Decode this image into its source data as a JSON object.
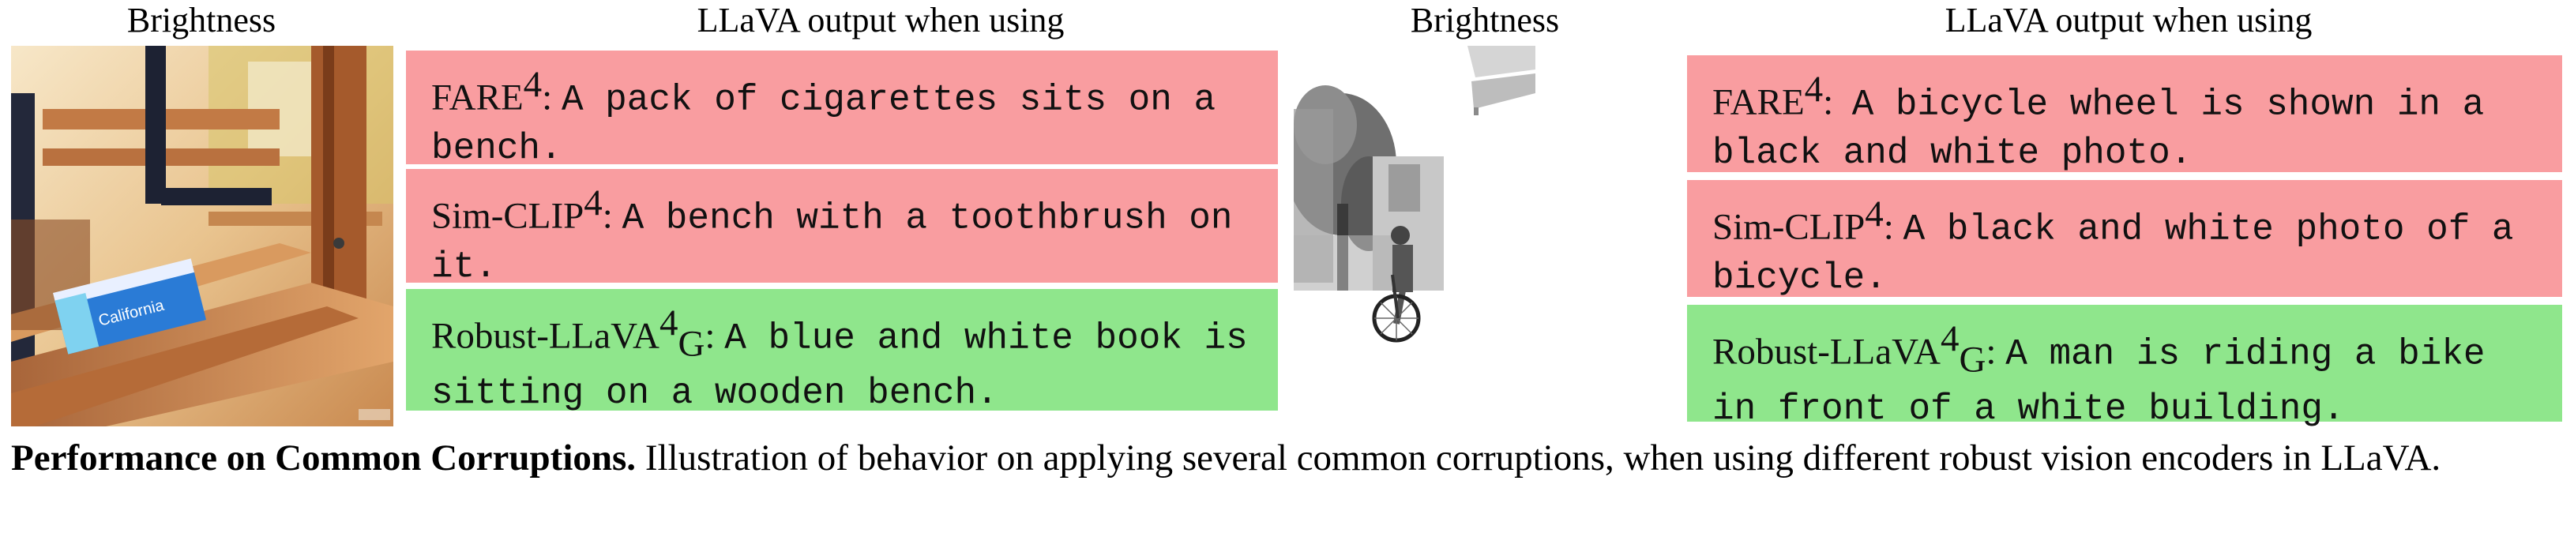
{
  "headers": {
    "left_image": "Brightness",
    "left_output": "LLaVA output when using",
    "right_image": "Brightness",
    "right_output": "LLaVA output when using"
  },
  "left_panel": {
    "image_label": "brightened photo of a cigarette pack on a wooden park bench",
    "pack_text": "California",
    "outputs": [
      {
        "model": "FARE",
        "sup": "4",
        "sub": "",
        "sep": ": ",
        "text": "A pack of cigarettes sits on a bench.",
        "status": "wrong"
      },
      {
        "model": "Sim-CLIP",
        "sup": "4",
        "sub": "",
        "sep": ": ",
        "text": "A bench with a toothbrush on it.",
        "status": "wrong"
      },
      {
        "model": "Robust-LLaVA",
        "sup": "4",
        "sub": "G",
        "sep": ": ",
        "text": "A blue and white book is sitting on a wooden bench.",
        "status": "correct"
      }
    ]
  },
  "right_panel": {
    "image_label": "over-brightened photo of a man riding a bicycle",
    "outputs": [
      {
        "model": "FARE",
        "sup": "4",
        "sub": "",
        "sep": ":  ",
        "text": "A bicycle wheel is shown in a black and white photo.",
        "status": "wrong"
      },
      {
        "model": "Sim-CLIP",
        "sup": "4",
        "sub": "",
        "sep": ": ",
        "text": "A black and white photo of a bicycle.",
        "status": "wrong"
      },
      {
        "model": "Robust-LLaVA",
        "sup": "4",
        "sub": "G",
        "sep": ": ",
        "text": "A man is riding a bike in front of a white building.",
        "status": "correct"
      }
    ]
  },
  "caption": {
    "bold": "Performance on Common Corruptions.",
    "text": " Illustration of behavior on applying several common corruptions, when using different robust vision encoders in LLaVA."
  },
  "colors": {
    "wrong_box": "#f99da0",
    "correct_box": "#8fe68c"
  }
}
